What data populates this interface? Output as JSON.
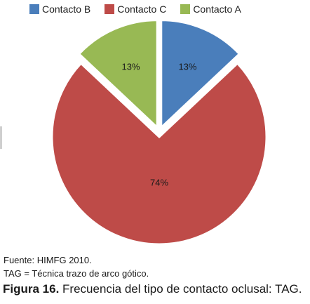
{
  "chart_data": {
    "type": "pie",
    "categories": [
      "Contacto B",
      "Contacto C",
      "Contacto A"
    ],
    "values": [
      13,
      74,
      13
    ],
    "labels": [
      "13%",
      "74%",
      "13%"
    ],
    "colors": [
      "#4a7ebb",
      "#be4b48",
      "#98b954"
    ],
    "legend": "top",
    "title": "",
    "exploded": true
  },
  "legend": [
    {
      "label": "Contacto B",
      "color": "#4a7ebb"
    },
    {
      "label": "Contacto C",
      "color": "#be4b48"
    },
    {
      "label": "Contacto A",
      "color": "#98b954"
    }
  ],
  "notes": {
    "source": "Fuente: HIMFG 2010.",
    "abbrev": "TAG = Técnica trazo de arco gótico."
  },
  "caption": {
    "label": "Figura 16.",
    "text": " Frecuencia del tipo de contacto oclusal: TAG."
  }
}
